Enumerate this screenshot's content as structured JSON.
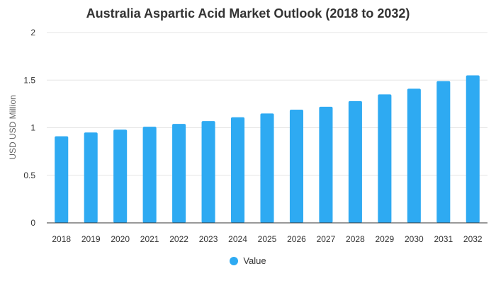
{
  "chart_data": {
    "type": "bar",
    "title": "Australia Aspartic Acid Market Outlook (2018 to 2032)",
    "xlabel": "",
    "ylabel": "USD USD Million",
    "ylim": [
      0,
      2
    ],
    "yticks": [
      0,
      0.5,
      1,
      1.5,
      2
    ],
    "grid": true,
    "legend_position": "bottom-center",
    "categories": [
      "2018",
      "2019",
      "2020",
      "2021",
      "2022",
      "2023",
      "2024",
      "2025",
      "2026",
      "2027",
      "2028",
      "2029",
      "2030",
      "2031",
      "2032"
    ],
    "series": [
      {
        "name": "Value",
        "color": "#2eaaf2",
        "values": [
          0.91,
          0.95,
          0.98,
          1.01,
          1.04,
          1.07,
          1.11,
          1.15,
          1.19,
          1.22,
          1.28,
          1.35,
          1.41,
          1.49,
          1.55
        ]
      }
    ]
  },
  "colors": {
    "bar": "#2eaaf2",
    "grid": "#e6e6e6",
    "axis": "#333333",
    "text": "#333333"
  }
}
